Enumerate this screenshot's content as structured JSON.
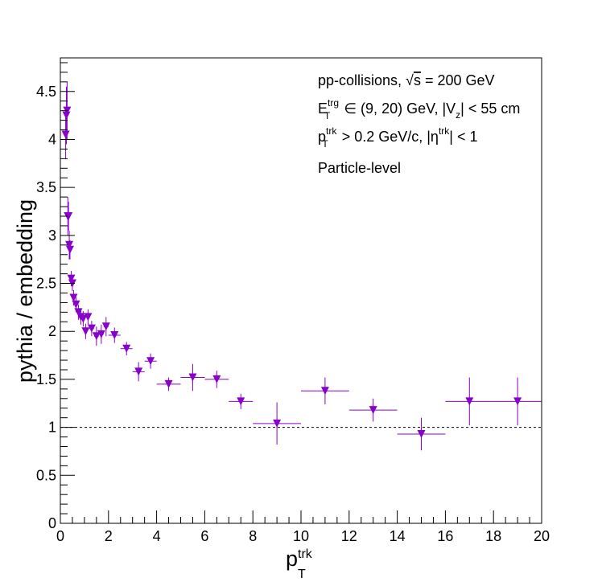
{
  "chart_data": {
    "type": "scatter",
    "title": "",
    "xlabel": {
      "main": "p",
      "sup": "trk",
      "sub": "T"
    },
    "ylabel": "pythia / embedding",
    "xlim": [
      0,
      20
    ],
    "ylim": [
      0,
      4.85
    ],
    "x_ticks": [
      0,
      2,
      4,
      6,
      8,
      10,
      12,
      14,
      16,
      18,
      20
    ],
    "x_tick_labels": [
      "0",
      "2",
      "4",
      "6",
      "8",
      "10",
      "12",
      "14",
      "16",
      "18",
      "20"
    ],
    "y_ticks": [
      0,
      0.5,
      1,
      1.5,
      2,
      2.5,
      3,
      3.5,
      4,
      4.5
    ],
    "y_tick_labels": [
      "0",
      "0.5",
      "1",
      "1.5",
      "2",
      "2.5",
      "3",
      "3.5",
      "4",
      "4.5"
    ],
    "grid": false,
    "reference_line": {
      "y": 1,
      "style": "dashed"
    },
    "annotations": [
      "pp-collisions, √s = 200 GeV",
      "E_T^trg ∈ (9, 20) GeV, |V_z| < 55 cm",
      "p_T^trk > 0.2 GeV/c, |η^trk| < 1",
      "Particle-level"
    ],
    "annotation_parts": {
      "line1_prefix": "pp-collisions, ",
      "line1_sqrt": "√",
      "line1_s": "s",
      "line1_suffix": " = 200 GeV",
      "line2_E": "E",
      "line2_sup": "trg",
      "line2_sub": "T",
      "line2_mid": " ∈ (9, 20) GeV, |V",
      "line2_vz_sub": "z",
      "line2_end": "| < 55 cm",
      "line3_p": "p",
      "line3_sup": "trk",
      "line3_sub": "T",
      "line3_mid": " > 0.2 GeV/c, |η",
      "line3_eta_sup": "trk",
      "line3_end": "| < 1",
      "line4": "Particle-level"
    },
    "marker_color": "#8800cc",
    "marker_shape": "inverted-triangle",
    "series": [
      {
        "points": [
          {
            "x": 0.22,
            "y": 4.05,
            "xerr": 0.02,
            "yerr": 0.25
          },
          {
            "x": 0.25,
            "y": 4.25,
            "xerr": 0.02,
            "yerr": 0.3
          },
          {
            "x": 0.28,
            "y": 4.3,
            "xerr": 0.02,
            "yerr": 0.3
          },
          {
            "x": 0.31,
            "y": 3.2,
            "xerr": 0.02,
            "yerr": 0.2
          },
          {
            "x": 0.34,
            "y": 3.2,
            "xerr": 0.02,
            "yerr": 0.15
          },
          {
            "x": 0.37,
            "y": 2.9,
            "xerr": 0.02,
            "yerr": 0.15
          },
          {
            "x": 0.4,
            "y": 2.85,
            "xerr": 0.02,
            "yerr": 0.1
          },
          {
            "x": 0.45,
            "y": 2.55,
            "xerr": 0.03,
            "yerr": 0.08
          },
          {
            "x": 0.5,
            "y": 2.5,
            "xerr": 0.03,
            "yerr": 0.08
          },
          {
            "x": 0.55,
            "y": 2.35,
            "xerr": 0.03,
            "yerr": 0.08
          },
          {
            "x": 0.65,
            "y": 2.28,
            "xerr": 0.05,
            "yerr": 0.08
          },
          {
            "x": 0.75,
            "y": 2.2,
            "xerr": 0.05,
            "yerr": 0.08
          },
          {
            "x": 0.85,
            "y": 2.15,
            "xerr": 0.05,
            "yerr": 0.08
          },
          {
            "x": 0.95,
            "y": 2.13,
            "xerr": 0.05,
            "yerr": 0.08
          },
          {
            "x": 1.05,
            "y": 2.0,
            "xerr": 0.05,
            "yerr": 0.08
          },
          {
            "x": 1.15,
            "y": 2.15,
            "xerr": 0.05,
            "yerr": 0.08
          },
          {
            "x": 1.3,
            "y": 2.03,
            "xerr": 0.1,
            "yerr": 0.08
          },
          {
            "x": 1.5,
            "y": 1.95,
            "xerr": 0.1,
            "yerr": 0.1
          },
          {
            "x": 1.7,
            "y": 1.97,
            "xerr": 0.1,
            "yerr": 0.1
          },
          {
            "x": 1.9,
            "y": 2.05,
            "xerr": 0.1,
            "yerr": 0.1
          },
          {
            "x": 2.25,
            "y": 1.96,
            "xerr": 0.25,
            "yerr": 0.08
          },
          {
            "x": 2.75,
            "y": 1.82,
            "xerr": 0.25,
            "yerr": 0.07
          },
          {
            "x": 3.25,
            "y": 1.58,
            "xerr": 0.25,
            "yerr": 0.1
          },
          {
            "x": 3.75,
            "y": 1.69,
            "xerr": 0.25,
            "yerr": 0.08
          },
          {
            "x": 4.5,
            "y": 1.45,
            "xerr": 0.5,
            "yerr": 0.07
          },
          {
            "x": 5.5,
            "y": 1.52,
            "xerr": 0.5,
            "yerr": 0.14
          },
          {
            "x": 6.5,
            "y": 1.5,
            "xerr": 0.5,
            "yerr": 0.09
          },
          {
            "x": 7.5,
            "y": 1.27,
            "xerr": 0.5,
            "yerr": 0.08
          },
          {
            "x": 9.0,
            "y": 1.04,
            "xerr": 1.0,
            "yerr": 0.22
          },
          {
            "x": 11.0,
            "y": 1.38,
            "xerr": 1.0,
            "yerr": 0.14
          },
          {
            "x": 13.0,
            "y": 1.18,
            "xerr": 1.0,
            "yerr": 0.12
          },
          {
            "x": 15.0,
            "y": 0.93,
            "xerr": 1.0,
            "yerr": 0.17
          },
          {
            "x": 17.0,
            "y": 1.27,
            "xerr": 1.0,
            "yerr": 0.25
          },
          {
            "x": 19.0,
            "y": 1.27,
            "xerr": 1.0,
            "yerr": 0.25
          }
        ]
      }
    ]
  }
}
